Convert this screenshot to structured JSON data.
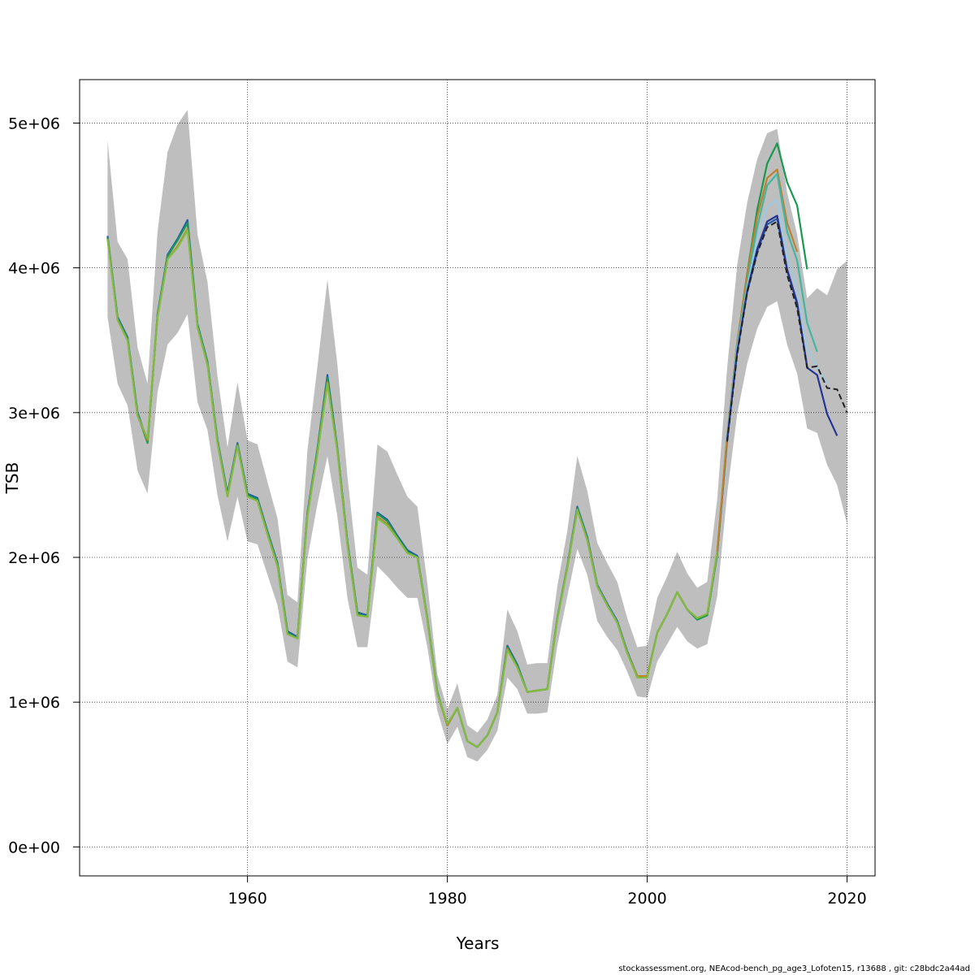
{
  "chart_data": {
    "type": "line",
    "title": "",
    "xlabel": "Years",
    "ylabel": "TSB",
    "xlim": [
      1943.2,
      2022.8
    ],
    "ylim": [
      -200000,
      5300000
    ],
    "x_ticks": [
      1960,
      1980,
      2000,
      2020
    ],
    "x_tick_labels": [
      "1960",
      "1980",
      "2000",
      "2020"
    ],
    "y_ticks": [
      0,
      1000000,
      2000000,
      3000000,
      4000000,
      5000000
    ],
    "y_tick_labels": [
      "0e+00",
      "1e+06",
      "2e+06",
      "3e+06",
      "4e+06",
      "5e+06"
    ],
    "grid": true,
    "confidence_band": {
      "color": "#bebebe",
      "x": [
        1946,
        1947,
        1948,
        1949,
        1950,
        1951,
        1952,
        1953,
        1954,
        1955,
        1956,
        1957,
        1958,
        1959,
        1960,
        1961,
        1962,
        1963,
        1964,
        1965,
        1966,
        1967,
        1968,
        1969,
        1970,
        1971,
        1972,
        1973,
        1974,
        1975,
        1976,
        1977,
        1978,
        1979,
        1980,
        1981,
        1982,
        1983,
        1984,
        1985,
        1986,
        1987,
        1988,
        1989,
        1990,
        1991,
        1992,
        1993,
        1994,
        1995,
        1996,
        1997,
        1998,
        1999,
        2000,
        2001,
        2002,
        2003,
        2004,
        2005,
        2006,
        2007,
        2008,
        2009,
        2010,
        2011,
        2012,
        2013,
        2014,
        2015,
        2016,
        2017,
        2018,
        2019,
        2020
      ],
      "upper": [
        4880000,
        4180000,
        4060000,
        3450000,
        3200000,
        4250000,
        4800000,
        4990000,
        5090000,
        4230000,
        3900000,
        3250000,
        2760000,
        3210000,
        2810000,
        2780000,
        2520000,
        2270000,
        1740000,
        1690000,
        2740000,
        3320000,
        3920000,
        3330000,
        2560000,
        1930000,
        1880000,
        2780000,
        2730000,
        2570000,
        2420000,
        2350000,
        1820000,
        1190000,
        950000,
        1130000,
        840000,
        790000,
        880000,
        1050000,
        1640000,
        1490000,
        1260000,
        1270000,
        1270000,
        1800000,
        2180000,
        2700000,
        2460000,
        2100000,
        1960000,
        1830000,
        1580000,
        1380000,
        1390000,
        1720000,
        1870000,
        2040000,
        1890000,
        1790000,
        1830000,
        2400000,
        3310000,
        4020000,
        4450000,
        4750000,
        4930000,
        4960000,
        4520000,
        4230000,
        3790000,
        3860000,
        3810000,
        3990000,
        4050000
      ],
      "lower": [
        3660000,
        3200000,
        3050000,
        2600000,
        2440000,
        3140000,
        3470000,
        3550000,
        3680000,
        3070000,
        2880000,
        2430000,
        2110000,
        2420000,
        2110000,
        2090000,
        1880000,
        1670000,
        1280000,
        1240000,
        1990000,
        2370000,
        2700000,
        2280000,
        1720000,
        1380000,
        1380000,
        1940000,
        1870000,
        1790000,
        1720000,
        1720000,
        1380000,
        940000,
        710000,
        830000,
        620000,
        590000,
        670000,
        800000,
        1170000,
        1090000,
        920000,
        920000,
        930000,
        1390000,
        1730000,
        2060000,
        1880000,
        1560000,
        1450000,
        1360000,
        1210000,
        1040000,
        1030000,
        1280000,
        1400000,
        1520000,
        1420000,
        1370000,
        1400000,
        1730000,
        2440000,
        2990000,
        3340000,
        3580000,
        3730000,
        3770000,
        3470000,
        3270000,
        2890000,
        2860000,
        2640000,
        2500000,
        2230000
      ]
    },
    "series": [
      {
        "color": "#225ea8",
        "x": [
          1946,
          1947,
          1948,
          1949,
          1950,
          1951,
          1952,
          1953,
          1954,
          1955,
          1956,
          1957,
          1958,
          1959,
          1960,
          1961,
          1962,
          1963,
          1964,
          1965,
          1966,
          1967,
          1968,
          1969,
          1970,
          1971,
          1972,
          1973,
          1974,
          1975,
          1976,
          1977,
          1978,
          1979,
          1980,
          1981,
          1982,
          1983,
          1984,
          1985,
          1986,
          1987,
          1988,
          1989,
          1990,
          1991,
          1992,
          1993,
          1994,
          1995,
          1996,
          1997,
          1998,
          1999,
          2000,
          2001,
          2002,
          2003,
          2004,
          2005,
          2006,
          2007,
          2008,
          2009,
          2010,
          2011,
          2012,
          2013,
          2014,
          2015,
          2016
        ],
        "y": [
          4220000,
          3660000,
          3520000,
          3000000,
          2800000,
          3680000,
          4090000,
          4200000,
          4330000,
          3610000,
          3350000,
          2810000,
          2440000,
          2790000,
          2440000,
          2410000,
          2180000,
          1960000,
          1490000,
          1450000,
          2310000,
          2750000,
          3260000,
          2750000,
          2110000,
          1620000,
          1600000,
          2310000,
          2260000,
          2150000,
          2050000,
          2010000,
          1580000,
          1070000,
          840000,
          960000,
          730000,
          690000,
          770000,
          930000,
          1390000,
          1260000,
          1070000,
          1080000,
          1090000,
          1580000,
          1940000,
          2350000,
          2140000,
          1810000,
          1680000,
          1560000,
          1350000,
          1180000,
          1180000,
          1480000,
          1610000,
          1760000,
          1640000,
          1570000,
          1600000,
          2020000,
          2810000,
          3420000,
          3830000,
          4110000,
          4300000,
          4340000,
          3980000,
          3750000,
          3320000
        ]
      },
      {
        "color": "#1a9850",
        "x": [
          1946,
          1947,
          1948,
          1949,
          1950,
          1951,
          1952,
          1953,
          1954,
          1955,
          1956,
          1957,
          1958,
          1959,
          1960,
          1961,
          1962,
          1963,
          1964,
          1965,
          1966,
          1967,
          1968,
          1969,
          1970,
          1971,
          1972,
          1973,
          1974,
          1975,
          1976,
          1977,
          1978,
          1979,
          1980,
          1981,
          1982,
          1983,
          1984,
          1985,
          1986,
          1987,
          1988,
          1989,
          1990,
          1991,
          1992,
          1993,
          1994,
          1995,
          1996,
          1997,
          1998,
          1999,
          2000,
          2001,
          2002,
          2003,
          2004,
          2005,
          2006,
          2007,
          2008,
          2009,
          2010,
          2011,
          2012,
          2013,
          2014,
          2015,
          2016
        ],
        "y": [
          4210000,
          3650000,
          3510000,
          2990000,
          2790000,
          3670000,
          4080000,
          4190000,
          4310000,
          3600000,
          3340000,
          2800000,
          2430000,
          2780000,
          2430000,
          2400000,
          2170000,
          1950000,
          1480000,
          1440000,
          2300000,
          2740000,
          3240000,
          2740000,
          2100000,
          1610000,
          1590000,
          2300000,
          2250000,
          2140000,
          2040000,
          2000000,
          1570000,
          1060000,
          840000,
          960000,
          730000,
          690000,
          770000,
          930000,
          1380000,
          1250000,
          1070000,
          1080000,
          1090000,
          1580000,
          1930000,
          2340000,
          2130000,
          1800000,
          1670000,
          1550000,
          1340000,
          1180000,
          1180000,
          1480000,
          1610000,
          1760000,
          1640000,
          1570000,
          1600000,
          2030000,
          2830000,
          3480000,
          3960000,
          4400000,
          4720000,
          4860000,
          4590000,
          4430000,
          3990000
        ]
      },
      {
        "color": "#bf812d",
        "x": [
          1946,
          1947,
          1948,
          1949,
          1950,
          1951,
          1952,
          1953,
          1954,
          1955,
          1956,
          1957,
          1958,
          1959,
          1960,
          1961,
          1962,
          1963,
          1964,
          1965,
          1966,
          1967,
          1968,
          1969,
          1970,
          1971,
          1972,
          1973,
          1974,
          1975,
          1976,
          1977,
          1978,
          1979,
          1980,
          1981,
          1982,
          1983,
          1984,
          1985,
          1986,
          1987,
          1988,
          1989,
          1990,
          1991,
          1992,
          1993,
          1994,
          1995,
          1996,
          1997,
          1998,
          1999,
          2000,
          2001,
          2002,
          2003,
          2004,
          2005,
          2006,
          2007,
          2008,
          2009,
          2010,
          2011,
          2012,
          2013,
          2014,
          2015
        ],
        "y": [
          4200000,
          3640000,
          3500000,
          2980000,
          2810000,
          3660000,
          4060000,
          4150000,
          4270000,
          3590000,
          3330000,
          2790000,
          2420000,
          2770000,
          2420000,
          2390000,
          2160000,
          1940000,
          1470000,
          1440000,
          2290000,
          2720000,
          3210000,
          2730000,
          2090000,
          1600000,
          1590000,
          2280000,
          2230000,
          2130000,
          2030000,
          2000000,
          1570000,
          1060000,
          840000,
          960000,
          730000,
          690000,
          770000,
          930000,
          1370000,
          1240000,
          1070000,
          1080000,
          1090000,
          1570000,
          1930000,
          2330000,
          2120000,
          1800000,
          1670000,
          1550000,
          1340000,
          1180000,
          1180000,
          1480000,
          1610000,
          1760000,
          1640000,
          1580000,
          1610000,
          2040000,
          2840000,
          3480000,
          3950000,
          4350000,
          4620000,
          4680000,
          4310000,
          4110000
        ]
      },
      {
        "color": "#41b6a2",
        "x": [
          2008,
          2009,
          2010,
          2011,
          2012,
          2013,
          2014,
          2015,
          2016,
          2017
        ],
        "y": [
          2830000,
          3460000,
          3890000,
          4280000,
          4570000,
          4650000,
          4250000,
          4050000,
          3620000,
          3420000
        ]
      },
      {
        "color": "#9ecae1",
        "x": [
          2008,
          2009,
          2010,
          2011,
          2012,
          2013,
          2014,
          2015,
          2016,
          2017,
          2018
        ],
        "y": [
          2820000,
          3440000,
          3860000,
          4200000,
          4420000,
          4470000,
          4090000,
          3850000,
          3450000,
          3310000,
          3200000
        ]
      },
      {
        "color": "#253494",
        "x": [
          2008,
          2009,
          2010,
          2011,
          2012,
          2013,
          2014,
          2015,
          2016,
          2017,
          2018,
          2019
        ],
        "y": [
          2810000,
          3420000,
          3840000,
          4130000,
          4320000,
          4360000,
          3990000,
          3760000,
          3310000,
          3260000,
          2990000,
          2840000
        ]
      },
      {
        "color": "#7fbc41",
        "x": [
          1946,
          1947,
          1948,
          1949,
          1950,
          1951,
          1952,
          1953,
          1954,
          1955,
          1956,
          1957,
          1958,
          1959,
          1960,
          1961,
          1962,
          1963,
          1964,
          1965,
          1966,
          1967,
          1968,
          1969,
          1970,
          1971,
          1972,
          1973,
          1974,
          1975,
          1976,
          1977,
          1978,
          1979,
          1980,
          1981,
          1982,
          1983,
          1984,
          1985,
          1986,
          1987,
          1988,
          1989,
          1990,
          1991,
          1992,
          1993,
          1994,
          1995,
          1996,
          1997,
          1998,
          1999,
          2000,
          2001,
          2002,
          2003,
          2004,
          2005,
          2006,
          2007
        ],
        "y": [
          4200000,
          3640000,
          3500000,
          2980000,
          2820000,
          3660000,
          4060000,
          4140000,
          4260000,
          3590000,
          3330000,
          2790000,
          2420000,
          2770000,
          2420000,
          2390000,
          2160000,
          1940000,
          1470000,
          1440000,
          2290000,
          2720000,
          3200000,
          2730000,
          2090000,
          1600000,
          1590000,
          2270000,
          2220000,
          2130000,
          2030000,
          2000000,
          1570000,
          1060000,
          850000,
          960000,
          730000,
          690000,
          770000,
          930000,
          1360000,
          1240000,
          1070000,
          1080000,
          1090000,
          1570000,
          1930000,
          2330000,
          2120000,
          1800000,
          1670000,
          1550000,
          1340000,
          1170000,
          1170000,
          1480000,
          1610000,
          1760000,
          1640000,
          1580000,
          1610000,
          2040000
        ]
      },
      {
        "color": "#222222",
        "dashed": true,
        "x": [
          2008,
          2009,
          2010,
          2011,
          2012,
          2013,
          2014,
          2015,
          2016,
          2017,
          2018,
          2019,
          2020
        ],
        "y": [
          2800000,
          3400000,
          3830000,
          4100000,
          4280000,
          4320000,
          3950000,
          3720000,
          3310000,
          3320000,
          3170000,
          3160000,
          3000000
        ]
      }
    ]
  },
  "footer": "stockassessment.org, NEAcod-bench_pg_age3_Lofoten15, r13688 , git: c28bdc2a44ad"
}
